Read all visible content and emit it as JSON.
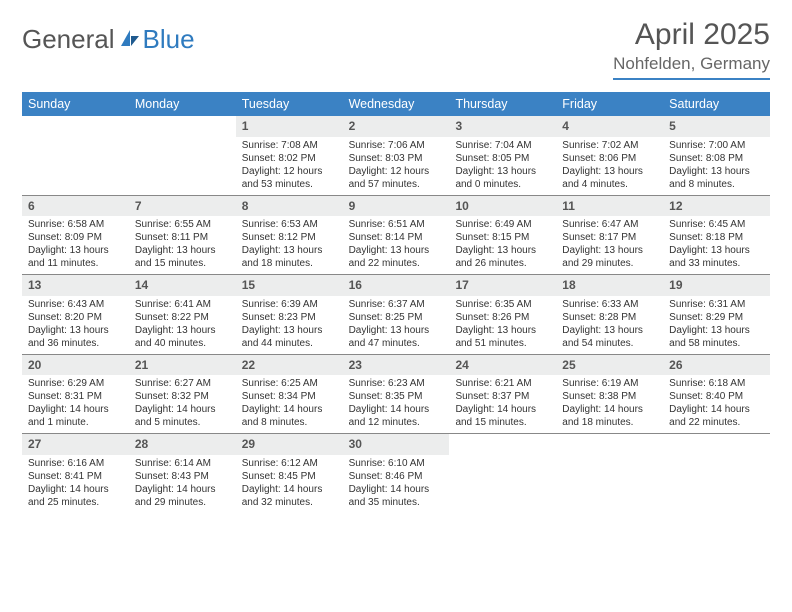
{
  "brand": {
    "part1": "General",
    "part2": "Blue"
  },
  "title": "April 2025",
  "location": "Nohfelden, Germany",
  "colors": {
    "header_bar": "#3b82c4",
    "daynum_bg": "#eceded",
    "rule": "#888888",
    "text": "#333333",
    "muted": "#555555"
  },
  "dow": [
    "Sunday",
    "Monday",
    "Tuesday",
    "Wednesday",
    "Thursday",
    "Friday",
    "Saturday"
  ],
  "weeks": [
    [
      null,
      null,
      {
        "n": "1",
        "sr": "7:08 AM",
        "ss": "8:02 PM",
        "dl": "12 hours and 53 minutes."
      },
      {
        "n": "2",
        "sr": "7:06 AM",
        "ss": "8:03 PM",
        "dl": "12 hours and 57 minutes."
      },
      {
        "n": "3",
        "sr": "7:04 AM",
        "ss": "8:05 PM",
        "dl": "13 hours and 0 minutes."
      },
      {
        "n": "4",
        "sr": "7:02 AM",
        "ss": "8:06 PM",
        "dl": "13 hours and 4 minutes."
      },
      {
        "n": "5",
        "sr": "7:00 AM",
        "ss": "8:08 PM",
        "dl": "13 hours and 8 minutes."
      }
    ],
    [
      {
        "n": "6",
        "sr": "6:58 AM",
        "ss": "8:09 PM",
        "dl": "13 hours and 11 minutes."
      },
      {
        "n": "7",
        "sr": "6:55 AM",
        "ss": "8:11 PM",
        "dl": "13 hours and 15 minutes."
      },
      {
        "n": "8",
        "sr": "6:53 AM",
        "ss": "8:12 PM",
        "dl": "13 hours and 18 minutes."
      },
      {
        "n": "9",
        "sr": "6:51 AM",
        "ss": "8:14 PM",
        "dl": "13 hours and 22 minutes."
      },
      {
        "n": "10",
        "sr": "6:49 AM",
        "ss": "8:15 PM",
        "dl": "13 hours and 26 minutes."
      },
      {
        "n": "11",
        "sr": "6:47 AM",
        "ss": "8:17 PM",
        "dl": "13 hours and 29 minutes."
      },
      {
        "n": "12",
        "sr": "6:45 AM",
        "ss": "8:18 PM",
        "dl": "13 hours and 33 minutes."
      }
    ],
    [
      {
        "n": "13",
        "sr": "6:43 AM",
        "ss": "8:20 PM",
        "dl": "13 hours and 36 minutes."
      },
      {
        "n": "14",
        "sr": "6:41 AM",
        "ss": "8:22 PM",
        "dl": "13 hours and 40 minutes."
      },
      {
        "n": "15",
        "sr": "6:39 AM",
        "ss": "8:23 PM",
        "dl": "13 hours and 44 minutes."
      },
      {
        "n": "16",
        "sr": "6:37 AM",
        "ss": "8:25 PM",
        "dl": "13 hours and 47 minutes."
      },
      {
        "n": "17",
        "sr": "6:35 AM",
        "ss": "8:26 PM",
        "dl": "13 hours and 51 minutes."
      },
      {
        "n": "18",
        "sr": "6:33 AM",
        "ss": "8:28 PM",
        "dl": "13 hours and 54 minutes."
      },
      {
        "n": "19",
        "sr": "6:31 AM",
        "ss": "8:29 PM",
        "dl": "13 hours and 58 minutes."
      }
    ],
    [
      {
        "n": "20",
        "sr": "6:29 AM",
        "ss": "8:31 PM",
        "dl": "14 hours and 1 minute."
      },
      {
        "n": "21",
        "sr": "6:27 AM",
        "ss": "8:32 PM",
        "dl": "14 hours and 5 minutes."
      },
      {
        "n": "22",
        "sr": "6:25 AM",
        "ss": "8:34 PM",
        "dl": "14 hours and 8 minutes."
      },
      {
        "n": "23",
        "sr": "6:23 AM",
        "ss": "8:35 PM",
        "dl": "14 hours and 12 minutes."
      },
      {
        "n": "24",
        "sr": "6:21 AM",
        "ss": "8:37 PM",
        "dl": "14 hours and 15 minutes."
      },
      {
        "n": "25",
        "sr": "6:19 AM",
        "ss": "8:38 PM",
        "dl": "14 hours and 18 minutes."
      },
      {
        "n": "26",
        "sr": "6:18 AM",
        "ss": "8:40 PM",
        "dl": "14 hours and 22 minutes."
      }
    ],
    [
      {
        "n": "27",
        "sr": "6:16 AM",
        "ss": "8:41 PM",
        "dl": "14 hours and 25 minutes."
      },
      {
        "n": "28",
        "sr": "6:14 AM",
        "ss": "8:43 PM",
        "dl": "14 hours and 29 minutes."
      },
      {
        "n": "29",
        "sr": "6:12 AM",
        "ss": "8:45 PM",
        "dl": "14 hours and 32 minutes."
      },
      {
        "n": "30",
        "sr": "6:10 AM",
        "ss": "8:46 PM",
        "dl": "14 hours and 35 minutes."
      },
      null,
      null,
      null
    ]
  ],
  "labels": {
    "sunrise": "Sunrise: ",
    "sunset": "Sunset: ",
    "daylight": "Daylight: "
  }
}
